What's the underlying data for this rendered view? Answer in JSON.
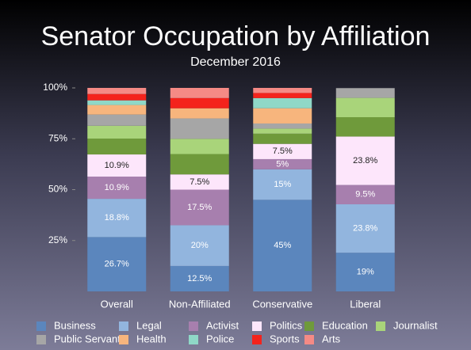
{
  "chart_data": {
    "type": "stacked_bar",
    "title": "Senator Occupation by Affiliation",
    "subtitle": "December 2016",
    "categories": [
      "Overall",
      "Non-Affiliated",
      "Conservative",
      "Liberal"
    ],
    "ylim": [
      0,
      100
    ],
    "yticks": [
      {
        "value": 25,
        "label": "25%"
      },
      {
        "value": 50,
        "label": "50%"
      },
      {
        "value": 75,
        "label": "75%"
      },
      {
        "value": 100,
        "label": "100%"
      }
    ],
    "series": [
      {
        "name": "Business",
        "color": "#5b86bd",
        "values": [
          26.7,
          12.5,
          45,
          19
        ],
        "value_labels": [
          "26.7%",
          "12.5%",
          "45%",
          "19%"
        ]
      },
      {
        "name": "Legal",
        "color": "#92b5de",
        "values": [
          18.8,
          20,
          15,
          23.8
        ],
        "value_labels": [
          "18.8%",
          "20%",
          "15%",
          "23.8%"
        ]
      },
      {
        "name": "Activist",
        "color": "#a77fae",
        "values": [
          10.9,
          17.5,
          5,
          9.5
        ],
        "value_labels": [
          "10.9%",
          "17.5%",
          "5%",
          "9.5%"
        ]
      },
      {
        "name": "Politics",
        "color": "#fde6fb",
        "values": [
          10.9,
          7.5,
          7.5,
          23.8
        ],
        "value_labels": [
          "10.9%",
          "7.5%",
          "7.5%",
          "23.8%"
        ]
      },
      {
        "name": "Education",
        "color": "#6f9a3b",
        "values": [
          7.8,
          10,
          5,
          9.5
        ],
        "value_labels": [
          null,
          null,
          null,
          null
        ]
      },
      {
        "name": "Journalist",
        "color": "#a9d47a",
        "values": [
          6.3,
          7.5,
          2.5,
          9.5
        ],
        "value_labels": [
          null,
          null,
          null,
          null
        ]
      },
      {
        "name": "Public Servant",
        "color": "#a6a6a6",
        "values": [
          5.5,
          10,
          2.5,
          4.8
        ],
        "value_labels": [
          null,
          null,
          null,
          null
        ]
      },
      {
        "name": "Health",
        "color": "#f7b57d",
        "values": [
          4.7,
          5,
          7.5,
          0
        ],
        "value_labels": [
          null,
          null,
          null,
          null
        ]
      },
      {
        "name": "Police",
        "color": "#8fd8c7",
        "values": [
          2.3,
          0,
          5,
          0
        ],
        "value_labels": [
          null,
          null,
          null,
          null
        ]
      },
      {
        "name": "Sports",
        "color": "#f4231c",
        "values": [
          3.1,
          5,
          2.5,
          0
        ],
        "value_labels": [
          null,
          null,
          null,
          null
        ]
      },
      {
        "name": "Arts",
        "color": "#f58a85",
        "values": [
          3.0,
          5,
          2.5,
          0
        ],
        "value_labels": [
          null,
          null,
          null,
          null
        ]
      }
    ]
  }
}
